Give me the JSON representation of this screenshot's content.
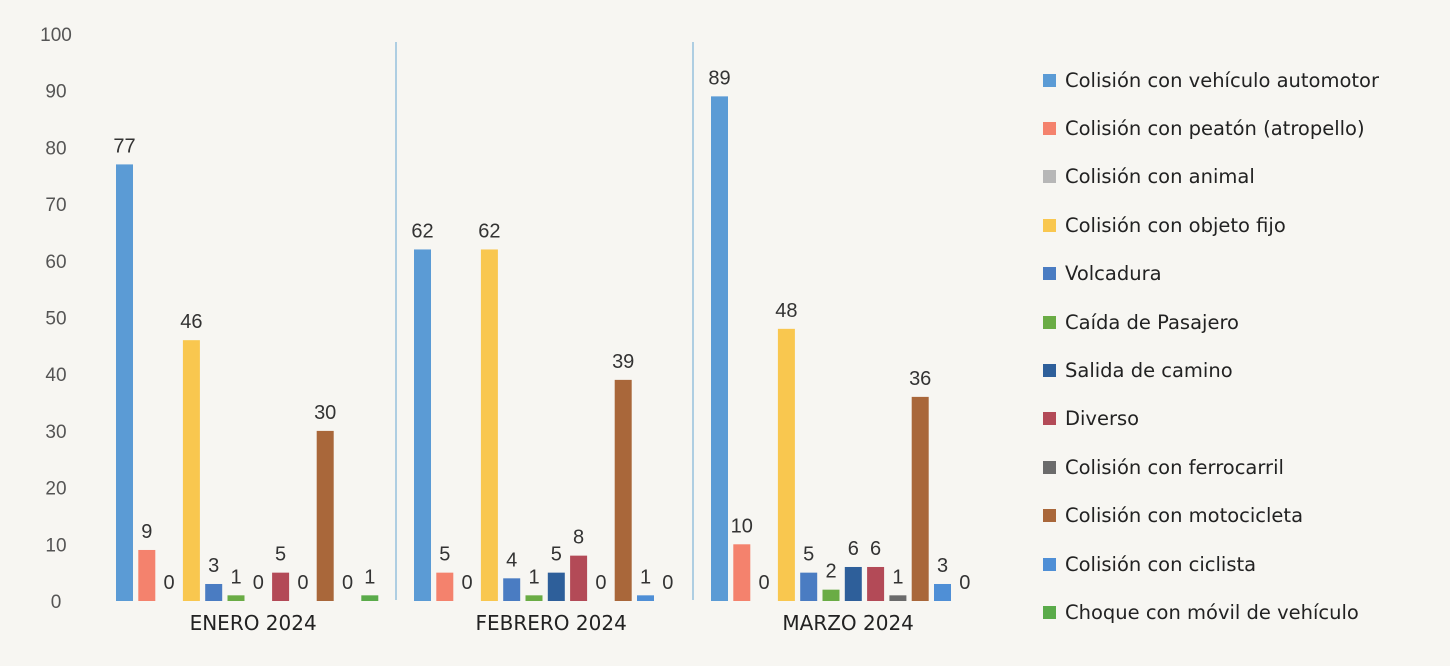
{
  "chart_data": {
    "type": "bar",
    "categories": [
      "ENERO 2024",
      "FEBRERO 2024",
      "MARZO 2024"
    ],
    "ylim": [
      0,
      100
    ],
    "yticks": [
      0,
      10,
      20,
      30,
      40,
      50,
      60,
      70,
      80,
      90,
      100
    ],
    "grid": false,
    "legend_position": "right",
    "series": [
      {
        "name": "Colisión con vehículo automotor",
        "color": "#5b9bd5",
        "values": [
          77,
          62,
          89
        ]
      },
      {
        "name": "Colisión con peatón (atropello)",
        "color": "#f4826d",
        "values": [
          9,
          5,
          10
        ]
      },
      {
        "name": "Colisión con animal",
        "color": "#b7b7b7",
        "values": [
          0,
          0,
          0
        ]
      },
      {
        "name": "Colisión con objeto fijo",
        "color": "#f9c74f",
        "values": [
          46,
          62,
          48
        ]
      },
      {
        "name": "Volcadura",
        "color": "#4a7cc2",
        "values": [
          3,
          4,
          5
        ]
      },
      {
        "name": "Caída de Pasajero",
        "color": "#6aac45",
        "values": [
          1,
          1,
          2
        ]
      },
      {
        "name": "Salida de camino",
        "color": "#2e5f9a",
        "values": [
          0,
          5,
          6
        ]
      },
      {
        "name": "Diverso",
        "color": "#b34a57",
        "values": [
          5,
          8,
          6
        ]
      },
      {
        "name": "Colisión con ferrocarril",
        "color": "#6b6b6b",
        "values": [
          0,
          0,
          1
        ]
      },
      {
        "name": "Colisión con motocicleta",
        "color": "#a9673a",
        "values": [
          30,
          39,
          36
        ]
      },
      {
        "name": "Colisión con ciclista",
        "color": "#4f8fd6",
        "values": [
          0,
          1,
          3
        ]
      },
      {
        "name": "Choque con móvil de vehículo",
        "color": "#5aab4a",
        "values": [
          1,
          0,
          0
        ]
      }
    ]
  }
}
